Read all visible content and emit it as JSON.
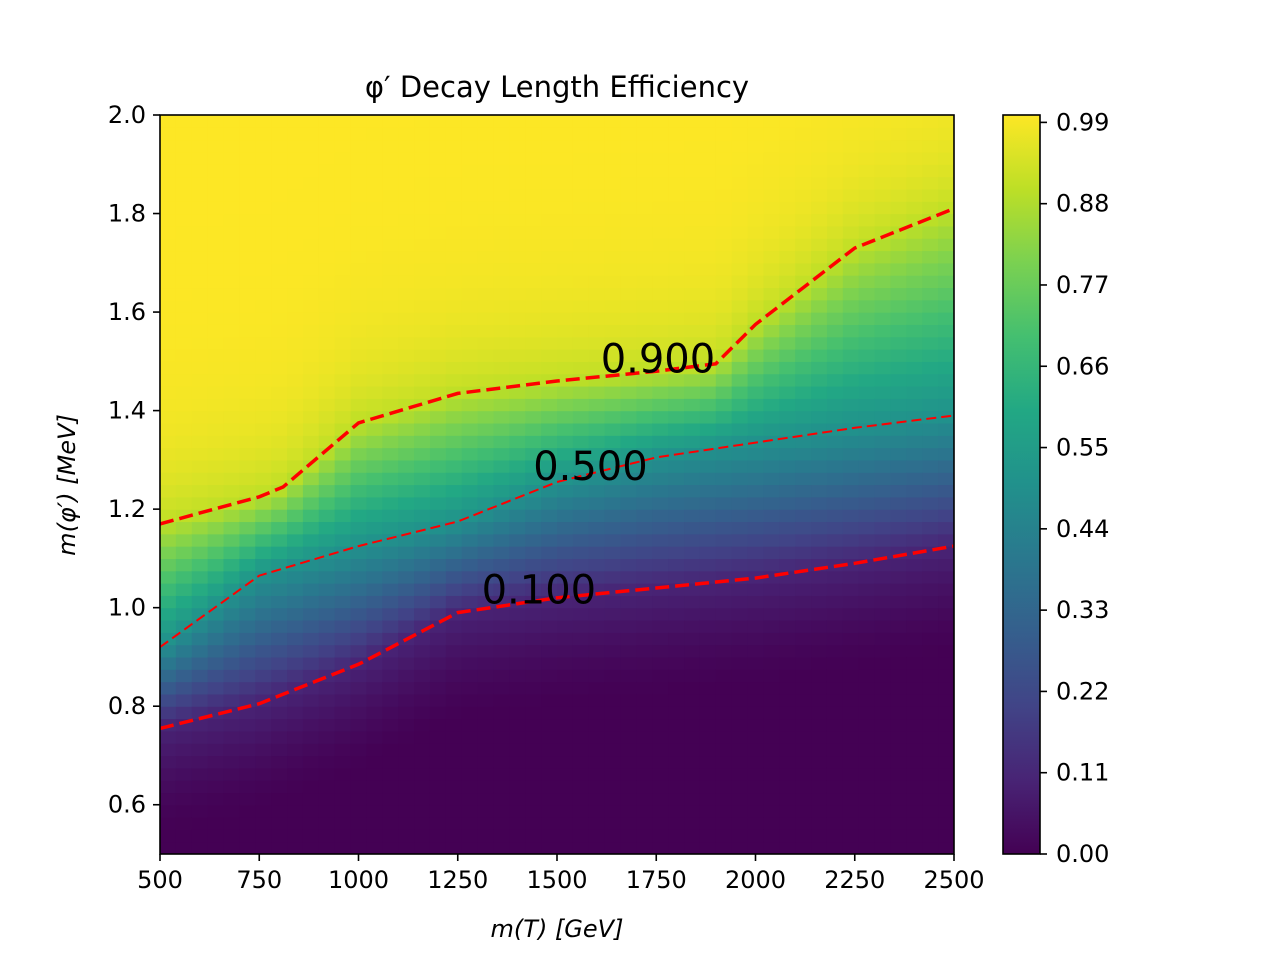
{
  "chart_data": {
    "type": "heatmap",
    "title": "φ′ Decay Length Efficiency",
    "xlabel": "m(T) [GeV]",
    "ylabel": "m(φ′) [MeV]",
    "xlim": [
      500,
      2500
    ],
    "ylim": [
      0.5,
      2.0
    ],
    "x_ticks": [
      "500",
      "750",
      "1000",
      "1250",
      "1500",
      "1750",
      "2000",
      "2250",
      "2500"
    ],
    "y_ticks": [
      "0.6",
      "0.8",
      "1.0",
      "1.2",
      "1.4",
      "1.6",
      "1.8",
      "2.0"
    ],
    "colormap": "viridis",
    "colorbar": {
      "range": [
        0.0,
        1.0
      ],
      "ticks": [
        "0.00",
        "0.11",
        "0.22",
        "0.33",
        "0.44",
        "0.55",
        "0.66",
        "0.77",
        "0.88",
        "0.99"
      ]
    },
    "grid": false,
    "contours": [
      {
        "level": 0.1,
        "label": "0.100",
        "color": "#ff0000",
        "style": "dashed",
        "points": [
          [
            500,
            0.755
          ],
          [
            750,
            0.805
          ],
          [
            1000,
            0.885
          ],
          [
            1250,
            0.99
          ],
          [
            1500,
            1.02
          ],
          [
            1750,
            1.04
          ],
          [
            2000,
            1.06
          ],
          [
            2250,
            1.09
          ],
          [
            2500,
            1.125
          ]
        ]
      },
      {
        "level": 0.5,
        "label": "0.500",
        "color": "#ff0000",
        "style": "dashed",
        "points": [
          [
            500,
            0.92
          ],
          [
            750,
            1.065
          ],
          [
            1000,
            1.125
          ],
          [
            1250,
            1.175
          ],
          [
            1500,
            1.255
          ],
          [
            1750,
            1.305
          ],
          [
            2000,
            1.335
          ],
          [
            2250,
            1.365
          ],
          [
            2500,
            1.39
          ]
        ]
      },
      {
        "level": 0.9,
        "label": "0.900",
        "color": "#ff0000",
        "style": "dashed",
        "points": [
          [
            500,
            1.17
          ],
          [
            750,
            1.225
          ],
          [
            810,
            1.245
          ],
          [
            1000,
            1.375
          ],
          [
            1250,
            1.435
          ],
          [
            1500,
            1.46
          ],
          [
            1750,
            1.48
          ],
          [
            1900,
            1.495
          ],
          [
            2000,
            1.575
          ],
          [
            2250,
            1.73
          ],
          [
            2500,
            1.81
          ]
        ]
      }
    ]
  }
}
